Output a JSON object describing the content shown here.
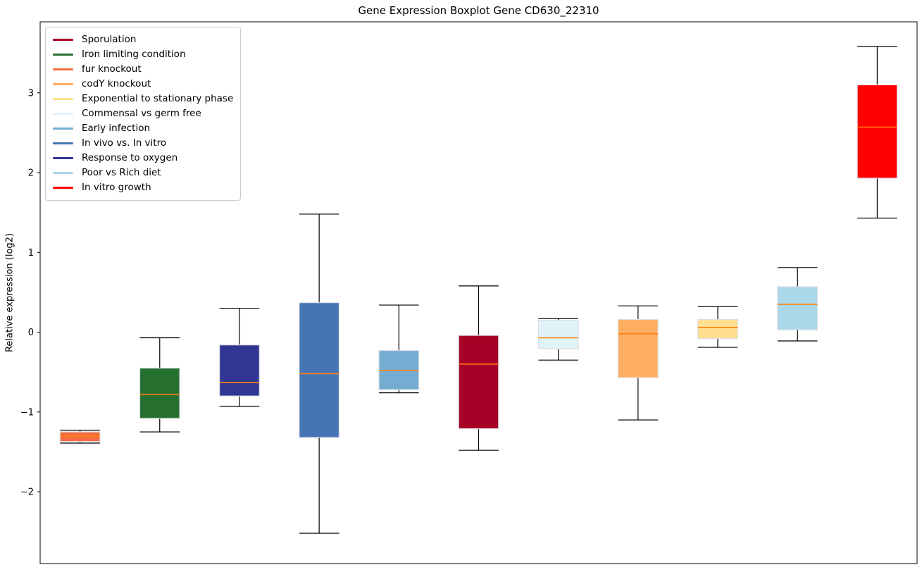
{
  "chart_data": {
    "type": "boxplot",
    "title": "Gene Expression Boxplot Gene CD630_22310",
    "ylabel": "Relative expression (log2)",
    "xlabel": "",
    "ylim": [
      -2.9,
      3.89
    ],
    "yticks": [
      -2,
      -1,
      0,
      1,
      2,
      3
    ],
    "x_tick_labels": [],
    "grid": false,
    "legend_position": "upper-left",
    "whisker_color": "#000000",
    "median_color": "#ff7f0e",
    "box_edge_color": "#dcdce6",
    "legend": [
      {
        "label": "Sporulation",
        "color": "#A50026"
      },
      {
        "label": "Iron limiting condition",
        "color": "#26702F"
      },
      {
        "label": "fur knockout",
        "color": "#F46D43"
      },
      {
        "label": "codY knockout",
        "color": "#FDAE61"
      },
      {
        "label": "Exponential to stationary phase",
        "color": "#FEE090"
      },
      {
        "label": "Commensal vs germ free",
        "color": "#E0F3F8"
      },
      {
        "label": "Early infection",
        "color": "#74ADD1"
      },
      {
        "label": "In vivo vs. In vitro",
        "color": "#4575B4"
      },
      {
        "label": "Response to oxygen",
        "color": "#313695"
      },
      {
        "label": "Poor vs Rich diet",
        "color": "#ABD9E9"
      },
      {
        "label": "In vitro growth",
        "color": "#FF0000"
      }
    ],
    "boxes": [
      {
        "condition": "fur knockout",
        "color": "#F46D43",
        "whislo": -1.39,
        "q1": -1.37,
        "med": -1.3,
        "q3": -1.25,
        "whishi": -1.23
      },
      {
        "condition": "Iron limiting condition",
        "color": "#26702F",
        "whislo": -1.25,
        "q1": -1.08,
        "med": -0.78,
        "q3": -0.45,
        "whishi": -0.07
      },
      {
        "condition": "Response to oxygen",
        "color": "#313695",
        "whislo": -0.93,
        "q1": -0.8,
        "med": -0.63,
        "q3": -0.16,
        "whishi": 0.3
      },
      {
        "condition": "In vivo vs. In vitro",
        "color": "#4575B4",
        "whislo": -2.52,
        "q1": -1.32,
        "med": -0.52,
        "q3": 0.37,
        "whishi": 1.48
      },
      {
        "condition": "Early infection",
        "color": "#74ADD1",
        "whislo": -0.76,
        "q1": -0.72,
        "med": -0.48,
        "q3": -0.23,
        "whishi": 0.34
      },
      {
        "condition": "Sporulation",
        "color": "#A50026",
        "whislo": -1.48,
        "q1": -1.21,
        "med": -0.4,
        "q3": -0.04,
        "whishi": 0.58
      },
      {
        "condition": "Commensal vs germ free",
        "color": "#E0F3F8",
        "whislo": -0.35,
        "q1": -0.21,
        "med": -0.07,
        "q3": 0.15,
        "whishi": 0.17
      },
      {
        "condition": "codY knockout",
        "color": "#FDAE61",
        "whislo": -1.1,
        "q1": -0.57,
        "med": -0.02,
        "q3": 0.16,
        "whishi": 0.33
      },
      {
        "condition": "Exponential to stationary phase",
        "color": "#FEE090",
        "whislo": -0.19,
        "q1": -0.08,
        "med": 0.06,
        "q3": 0.16,
        "whishi": 0.32
      },
      {
        "condition": "Poor vs Rich diet",
        "color": "#ABD9E9",
        "whislo": -0.11,
        "q1": 0.03,
        "med": 0.35,
        "q3": 0.57,
        "whishi": 0.81
      },
      {
        "condition": "In vitro growth",
        "color": "#FF0000",
        "whislo": 1.43,
        "q1": 1.93,
        "med": 2.57,
        "q3": 3.1,
        "whishi": 3.58
      }
    ]
  }
}
